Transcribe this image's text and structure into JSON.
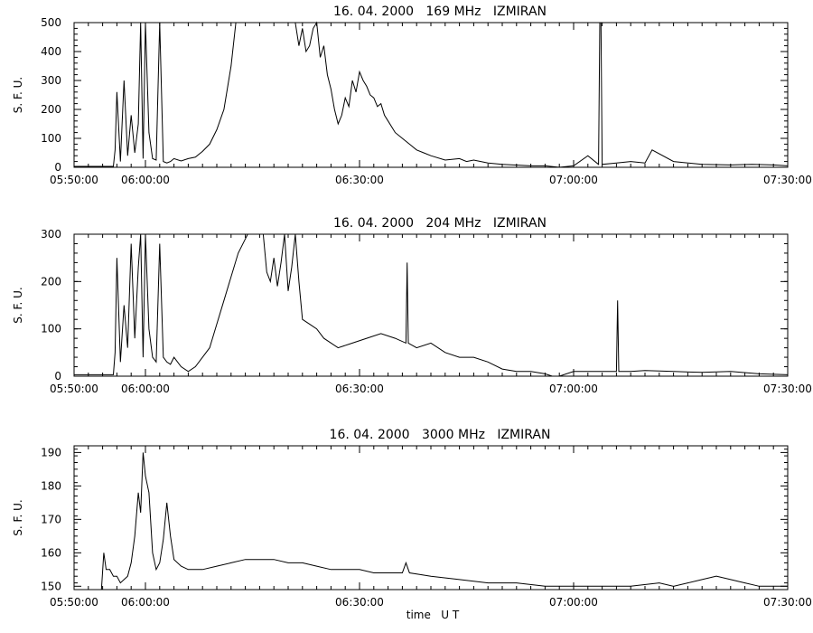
{
  "chart_data": [
    {
      "type": "line",
      "title": "16. 04. 2000   169 MHz   IZMIRAN",
      "xlabel": "",
      "ylabel": "S. F. U.",
      "xlim": [
        "05:50:00",
        "07:30:00"
      ],
      "ylim": [
        0,
        500
      ],
      "xticks": [
        "05:50:00",
        "06:00:00",
        "06:30:00",
        "07:00:00",
        "07:30:00"
      ],
      "yticks": [
        0,
        100,
        200,
        300,
        400,
        500
      ],
      "grid": false,
      "series": [
        {
          "x": [
            "05:50:00",
            "05:55:30",
            "05:55:45",
            "05:56:00",
            "05:56:30",
            "05:57:00",
            "05:57:30",
            "05:58:00",
            "05:58:30",
            "05:59:00",
            "05:59:20",
            "05:59:40",
            "06:00:00",
            "06:00:30",
            "06:01:00",
            "06:01:30",
            "06:02:00",
            "06:02:30",
            "06:03:00",
            "06:03:30",
            "06:04:00",
            "06:05:00",
            "06:06:00",
            "06:07:00",
            "06:08:00",
            "06:09:00",
            "06:10:00",
            "06:11:00",
            "06:12:00",
            "06:12:40",
            "06:21:00",
            "06:21:30",
            "06:22:00",
            "06:22:30",
            "06:23:00",
            "06:23:30",
            "06:24:00",
            "06:24:30",
            "06:25:00",
            "06:25:30",
            "06:26:00",
            "06:26:30",
            "06:27:00",
            "06:27:30",
            "06:28:00",
            "06:28:30",
            "06:29:00",
            "06:29:30",
            "06:30:00",
            "06:30:30",
            "06:31:00",
            "06:31:30",
            "06:32:00",
            "06:32:30",
            "06:33:00",
            "06:33:30",
            "06:34:00",
            "06:35:00",
            "06:36:00",
            "06:37:00",
            "06:38:00",
            "06:39:00",
            "06:40:00",
            "06:42:00",
            "06:44:00",
            "06:45:00",
            "06:46:00",
            "06:48:00",
            "06:50:00",
            "06:54:00",
            "06:56:00",
            "06:58:00",
            "07:00:00",
            "07:02:00",
            "07:03:30",
            "07:03:40",
            "07:03:50",
            "07:04:00",
            "07:06:00",
            "07:08:00",
            "07:10:00",
            "07:11:00",
            "07:14:00",
            "07:18:00",
            "07:22:00",
            "07:25:00",
            "07:28:00",
            "07:30:00"
          ],
          "y": [
            3,
            3,
            60,
            260,
            20,
            300,
            40,
            180,
            50,
            150,
            500,
            30,
            500,
            120,
            30,
            25,
            500,
            20,
            15,
            20,
            30,
            22,
            30,
            35,
            55,
            80,
            130,
            200,
            350,
            500,
            500,
            420,
            480,
            400,
            420,
            480,
            500,
            380,
            420,
            320,
            270,
            200,
            150,
            180,
            240,
            210,
            300,
            260,
            330,
            300,
            280,
            250,
            240,
            210,
            220,
            180,
            160,
            120,
            100,
            80,
            60,
            50,
            40,
            25,
            30,
            20,
            25,
            15,
            10,
            5,
            5,
            -5,
            5,
            40,
            10,
            500,
            500,
            10,
            15,
            20,
            15,
            60,
            20,
            10,
            8,
            10,
            8,
            5
          ]
        }
      ]
    },
    {
      "type": "line",
      "title": "16. 04. 2000   204 MHz   IZMIRAN",
      "xlabel": "",
      "ylabel": "S. F. U.",
      "xlim": [
        "05:50:00",
        "07:30:00"
      ],
      "ylim": [
        0,
        300
      ],
      "xticks": [
        "05:50:00",
        "06:00:00",
        "06:30:00",
        "07:00:00",
        "07:30:00"
      ],
      "yticks": [
        0,
        100,
        200,
        300
      ],
      "grid": false,
      "series": [
        {
          "x": [
            "05:50:00",
            "05:55:30",
            "05:55:45",
            "05:56:00",
            "05:56:30",
            "05:57:00",
            "05:57:30",
            "05:58:00",
            "05:58:30",
            "05:59:00",
            "05:59:20",
            "05:59:40",
            "06:00:00",
            "06:00:30",
            "06:01:00",
            "06:01:30",
            "06:02:00",
            "06:02:30",
            "06:03:00",
            "06:03:30",
            "06:04:00",
            "06:05:00",
            "06:06:00",
            "06:07:00",
            "06:08:00",
            "06:09:00",
            "06:10:00",
            "06:11:00",
            "06:12:00",
            "06:13:00",
            "06:14:00",
            "06:14:20",
            "06:16:30",
            "06:17:00",
            "06:17:30",
            "06:18:00",
            "06:18:30",
            "06:19:00",
            "06:19:30",
            "06:20:00",
            "06:20:30",
            "06:21:00",
            "06:21:30",
            "06:22:00",
            "06:23:00",
            "06:24:00",
            "06:25:00",
            "06:27:00",
            "06:29:00",
            "06:31:00",
            "06:33:00",
            "06:35:00",
            "06:36:30",
            "06:36:40",
            "06:36:50",
            "06:38:00",
            "06:40:00",
            "06:42:00",
            "06:44:00",
            "06:46:00",
            "06:48:00",
            "06:50:00",
            "06:52:00",
            "06:54:00",
            "06:56:00",
            "06:57:00",
            "06:58:00",
            "07:00:00",
            "07:02:00",
            "07:04:00",
            "07:06:00",
            "07:06:10",
            "07:06:20",
            "07:08:00",
            "07:10:00",
            "07:14:00",
            "07:18:00",
            "07:22:00",
            "07:26:00",
            "07:30:00"
          ],
          "y": [
            3,
            3,
            50,
            250,
            30,
            150,
            60,
            280,
            80,
            230,
            300,
            40,
            300,
            100,
            40,
            30,
            280,
            40,
            30,
            25,
            40,
            20,
            10,
            20,
            40,
            60,
            110,
            160,
            210,
            260,
            290,
            300,
            300,
            220,
            200,
            250,
            190,
            240,
            300,
            180,
            230,
            300,
            200,
            120,
            110,
            100,
            80,
            60,
            70,
            80,
            90,
            80,
            70,
            240,
            70,
            60,
            70,
            50,
            40,
            40,
            30,
            15,
            10,
            10,
            5,
            0,
            0,
            10,
            10,
            10,
            10,
            160,
            10,
            10,
            12,
            10,
            8,
            10,
            5,
            3
          ]
        }
      ]
    },
    {
      "type": "line",
      "title": "16. 04. 2000   3000 MHz   IZMIRAN",
      "xlabel": "time   U T",
      "ylabel": "S. F. U.",
      "xlim": [
        "05:50:00",
        "07:30:00"
      ],
      "ylim": [
        149,
        192
      ],
      "xticks": [
        "05:50:00",
        "06:00:00",
        "06:30:00",
        "07:00:00",
        "07:30:00"
      ],
      "yticks": [
        150,
        160,
        170,
        180,
        190
      ],
      "grid": false,
      "series": [
        {
          "x": [
            "05:50:00",
            "05:53:50",
            "05:54:10",
            "05:54:30",
            "05:55:00",
            "05:55:30",
            "05:56:00",
            "05:56:30",
            "05:57:00",
            "05:57:30",
            "05:58:00",
            "05:58:30",
            "05:59:00",
            "05:59:20",
            "05:59:40",
            "06:00:00",
            "06:00:30",
            "06:01:00",
            "06:01:30",
            "06:02:00",
            "06:02:30",
            "06:03:00",
            "06:03:30",
            "06:04:00",
            "06:05:00",
            "06:06:00",
            "06:08:00",
            "06:10:00",
            "06:12:00",
            "06:14:00",
            "06:16:00",
            "06:18:00",
            "06:20:00",
            "06:22:00",
            "06:24:00",
            "06:26:00",
            "06:28:00",
            "06:30:00",
            "06:32:00",
            "06:34:00",
            "06:36:00",
            "06:36:30",
            "06:37:00",
            "06:40:00",
            "06:44:00",
            "06:48:00",
            "06:52:00",
            "06:56:00",
            "07:00:00",
            "07:04:00",
            "07:08:00",
            "07:12:00",
            "07:14:00",
            "07:16:00",
            "07:18:00",
            "07:20:00",
            "07:22:00",
            "07:24:00",
            "07:26:00",
            "07:28:00",
            "07:30:00"
          ],
          "y": [
            149,
            149,
            160,
            155,
            155,
            153,
            153,
            151,
            152,
            153,
            157,
            165,
            178,
            172,
            190,
            183,
            178,
            160,
            155,
            157,
            164,
            175,
            165,
            158,
            156,
            155,
            155,
            156,
            157,
            158,
            158,
            158,
            157,
            157,
            156,
            155,
            155,
            155,
            154,
            154,
            154,
            157,
            154,
            153,
            152,
            151,
            151,
            150,
            150,
            150,
            150,
            151,
            150,
            151,
            152,
            153,
            152,
            151,
            150,
            150,
            150
          ]
        }
      ]
    }
  ]
}
